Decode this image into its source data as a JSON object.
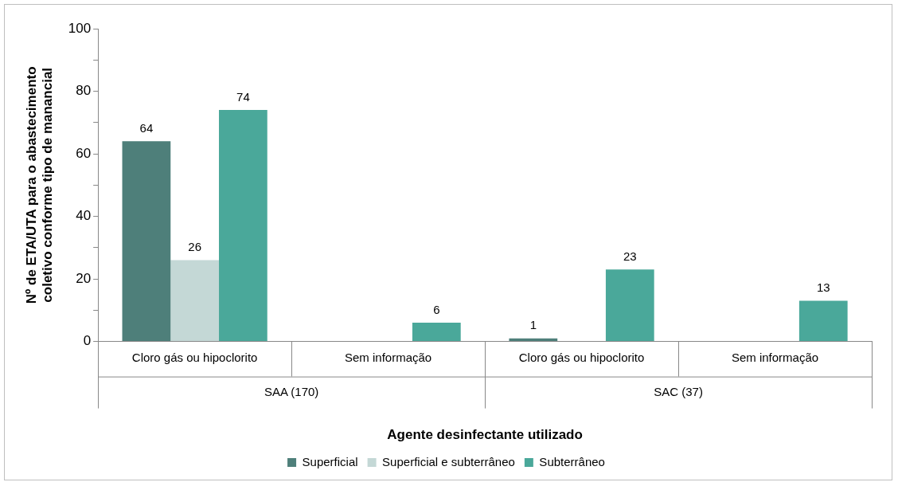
{
  "chart_data": {
    "type": "bar",
    "xlabel": "Agente desinfectante utilizado",
    "ylabel": "Nº de ETA/UTA para o abastecimento coletivo conforme tipo de manancial",
    "categories": [
      "Cloro gás ou hipoclorito",
      "Sem informação",
      "Cloro gás ou hipoclorito",
      "Sem informação"
    ],
    "series": [
      {
        "name": "Superficial",
        "color": "#4e7f7a",
        "values": [
          64,
          null,
          1,
          null
        ]
      },
      {
        "name": "Superficial e subterrâneo",
        "color": "#c4d8d6",
        "values": [
          26,
          null,
          null,
          null
        ]
      },
      {
        "name": "Subterrâneo",
        "color": "#4aa89a",
        "values": [
          74,
          6,
          23,
          13
        ]
      }
    ],
    "ylim": [
      0,
      100
    ],
    "yticks": [
      0,
      {
        "value": 10,
        "label": null
      },
      20,
      {
        "value": 30,
        "label": null
      },
      40,
      {
        "value": 50,
        "label": null
      },
      60,
      {
        "value": 70,
        "label": null
      },
      80,
      {
        "value": 90,
        "label": null
      },
      100
    ],
    "annotations": [
      "SAA (170)",
      "SAC (37)"
    ],
    "data_labels": true,
    "grid": false,
    "legend": "bottom"
  }
}
